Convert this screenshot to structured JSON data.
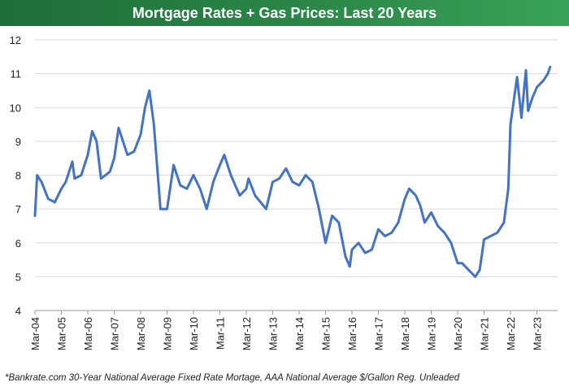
{
  "title": "Mortgage Rates + Gas Prices: Last 20 Years",
  "footnote": "*Bankrate.com 30-Year National Average Fixed Rate Mortage, AAA National Average $/Gallon Reg. Unleaded",
  "colors": {
    "line": "#4472c4",
    "title_bg": "#2c8a4a",
    "grid": "#d9d9d9"
  },
  "chart_data": {
    "type": "line",
    "title": "Mortgage Rates + Gas Prices: Last 20 Years",
    "xlabel": "",
    "ylabel": "",
    "ylim": [
      4,
      12
    ],
    "yticks": [
      4,
      5,
      6,
      7,
      8,
      9,
      10,
      11,
      12
    ],
    "xticks": [
      "Mar-04",
      "Mar-05",
      "Mar-06",
      "Mar-07",
      "Mar-08",
      "Mar-09",
      "Mar-10",
      "Mar-11",
      "Mar-12",
      "Mar-13",
      "Mar-14",
      "Mar-15",
      "Mar-16",
      "Mar-17",
      "Mar-18",
      "Mar-19",
      "Mar-20",
      "Mar-21",
      "Mar-22",
      "Mar-23"
    ],
    "grid": "horizontal",
    "series": [
      {
        "x": [
          "Mar-04",
          "Apr-04",
          "Jun-04",
          "Sep-04",
          "Dec-04",
          "Mar-05",
          "May-05",
          "Aug-05",
          "Sep-05",
          "Dec-05",
          "Mar-06",
          "May-06",
          "Jul-06",
          "Sep-06",
          "Jan-07",
          "Mar-07",
          "May-07",
          "Jul-07",
          "Sep-07",
          "Dec-07",
          "Mar-08",
          "May-08",
          "Jul-08",
          "Sep-08",
          "Dec-08",
          "Mar-09",
          "Jun-09",
          "Sep-09",
          "Dec-09",
          "Mar-10",
          "Jun-10",
          "Sep-10",
          "Dec-10",
          "Mar-11",
          "May-11",
          "Aug-11",
          "Dec-11",
          "Mar-12",
          "Apr-12",
          "Jul-12",
          "Dec-12",
          "Mar-13",
          "Jun-13",
          "Sep-13",
          "Dec-13",
          "Mar-14",
          "Jun-14",
          "Sep-14",
          "Dec-14",
          "Mar-15",
          "Jun-15",
          "Sep-15",
          "Dec-15",
          "Feb-16",
          "Mar-16",
          "Jun-16",
          "Sep-16",
          "Dec-16",
          "Mar-17",
          "Jun-17",
          "Sep-17",
          "Dec-17",
          "Mar-18",
          "May-18",
          "Aug-18",
          "Oct-18",
          "Dec-18",
          "Mar-19",
          "Jun-19",
          "Sep-19",
          "Dec-19",
          "Mar-20",
          "May-20",
          "Aug-20",
          "Nov-20",
          "Jan-21",
          "Mar-21",
          "Jun-21",
          "Sep-21",
          "Dec-21",
          "Feb-22",
          "Mar-22",
          "Jun-22",
          "Aug-22",
          "Oct-22",
          "Nov-22",
          "Jan-23",
          "Mar-23",
          "Jun-23",
          "Aug-23",
          "Sep-23"
        ],
        "values": [
          6.8,
          8.0,
          7.8,
          7.3,
          7.2,
          7.6,
          7.8,
          8.4,
          7.9,
          8.0,
          8.6,
          9.3,
          9.0,
          7.9,
          8.1,
          8.5,
          9.4,
          9.0,
          8.6,
          8.7,
          9.2,
          10.0,
          10.5,
          9.5,
          7.0,
          7.0,
          8.3,
          7.7,
          7.6,
          8.0,
          7.6,
          7.0,
          7.8,
          8.3,
          8.6,
          8.0,
          7.4,
          7.6,
          7.9,
          7.4,
          7.0,
          7.8,
          7.9,
          8.2,
          7.8,
          7.7,
          8.0,
          7.8,
          7.0,
          6.0,
          6.8,
          6.6,
          5.6,
          5.3,
          5.8,
          6.0,
          5.7,
          5.8,
          6.4,
          6.2,
          6.3,
          6.6,
          7.3,
          7.6,
          7.4,
          7.1,
          6.6,
          6.9,
          6.5,
          6.3,
          6.0,
          5.4,
          5.4,
          5.2,
          5.0,
          5.2,
          6.1,
          6.2,
          6.3,
          6.6,
          7.6,
          9.5,
          10.9,
          9.7,
          11.1,
          9.9,
          10.3,
          10.6,
          10.8,
          11.0,
          11.2
        ]
      }
    ]
  }
}
